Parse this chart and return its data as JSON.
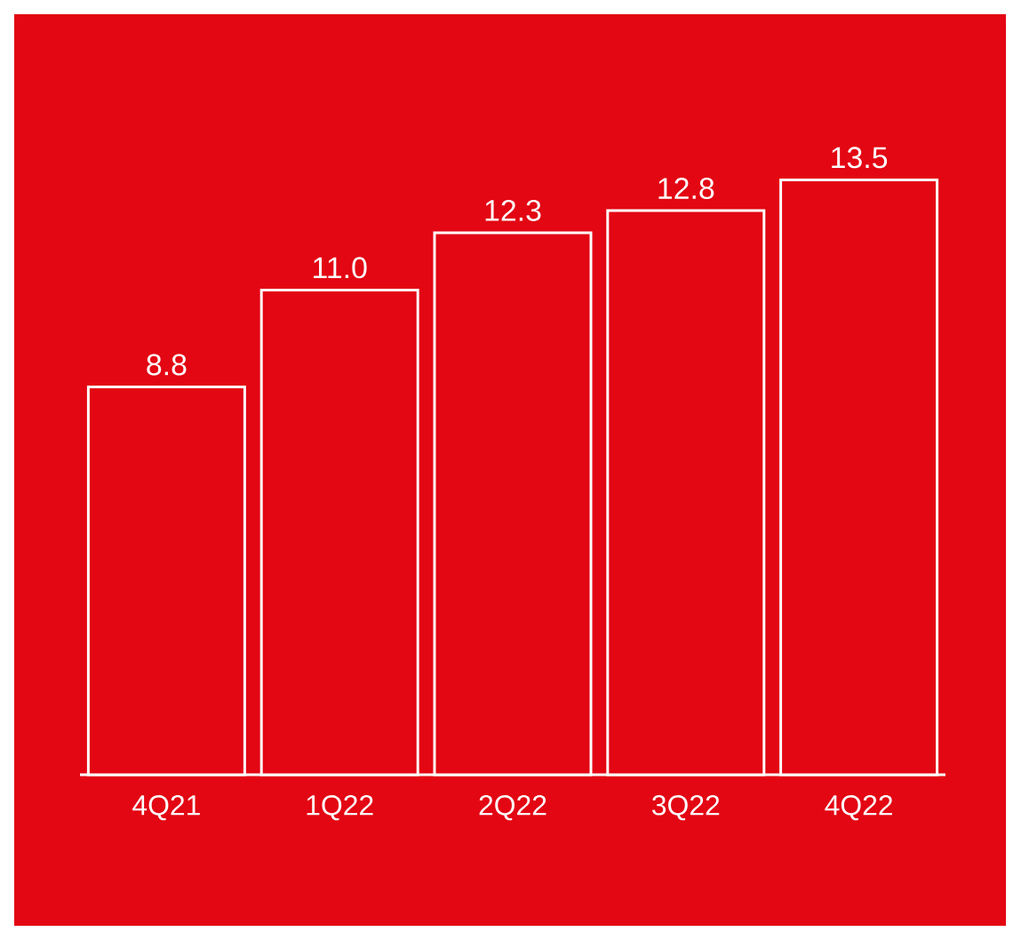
{
  "chart_data": {
    "type": "bar",
    "categories": [
      "4Q21",
      "1Q22",
      "2Q22",
      "3Q22",
      "4Q22"
    ],
    "values": [
      8.8,
      11.0,
      12.3,
      12.8,
      13.5
    ],
    "value_labels": [
      "8.8",
      "11.0",
      "12.3",
      "12.8",
      "13.5"
    ],
    "color": "#e30613"
  }
}
